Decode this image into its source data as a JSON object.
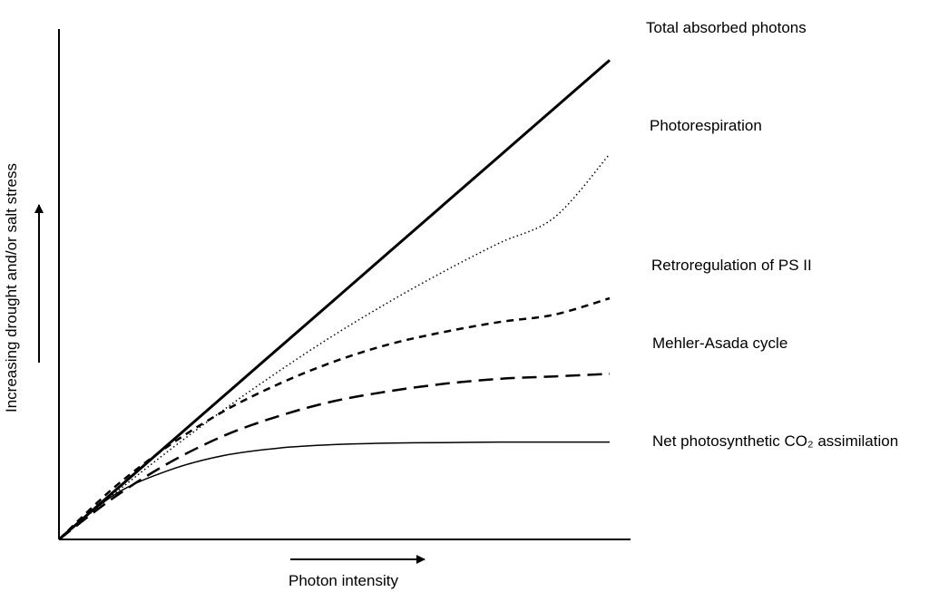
{
  "chart_data": {
    "type": "line",
    "title": "",
    "xlabel": "Photon intensity",
    "ylabel": "Increasing drought and/or salt stress",
    "xlim": [
      0,
      10
    ],
    "ylim": [
      0,
      10
    ],
    "grid": false,
    "legend": "direct-labels-right",
    "series": [
      {
        "name": "Total absorbed photons",
        "style": "solid-thick",
        "x": [
          0,
          1,
          2,
          3,
          4,
          5,
          6,
          7,
          8,
          9,
          10
        ],
        "y": [
          0,
          0.97,
          1.94,
          2.91,
          3.88,
          4.85,
          5.82,
          6.79,
          7.76,
          8.73,
          9.7
        ]
      },
      {
        "name": "Photorespiration",
        "style": "dotted",
        "x": [
          0,
          1,
          2,
          3,
          4,
          5,
          6,
          7,
          8,
          9,
          10
        ],
        "y": [
          0,
          0.92,
          1.8,
          2.63,
          3.41,
          4.14,
          4.81,
          5.43,
          6.0,
          6.52,
          7.8
        ]
      },
      {
        "name": "Retroregulation of PS II",
        "style": "short-dash",
        "x": [
          0,
          1,
          2,
          3,
          4,
          5,
          6,
          7,
          8,
          9,
          10
        ],
        "y": [
          0,
          1.05,
          1.9,
          2.6,
          3.15,
          3.6,
          3.95,
          4.2,
          4.4,
          4.55,
          4.88
        ]
      },
      {
        "name": "Mehler-Asada cycle",
        "style": "long-dash",
        "x": [
          0,
          1,
          2,
          3,
          4,
          5,
          6,
          7,
          8,
          9,
          10
        ],
        "y": [
          0,
          0.85,
          1.55,
          2.1,
          2.5,
          2.8,
          3.0,
          3.15,
          3.25,
          3.3,
          3.35
        ]
      },
      {
        "name": "Net photosynthetic CO₂ assimilation",
        "style": "solid-thin",
        "x": [
          0,
          1,
          2,
          3,
          4,
          5,
          6,
          7,
          8,
          9,
          10
        ],
        "y": [
          0,
          0.9,
          1.4,
          1.7,
          1.85,
          1.92,
          1.95,
          1.96,
          1.97,
          1.97,
          1.97
        ]
      }
    ]
  }
}
